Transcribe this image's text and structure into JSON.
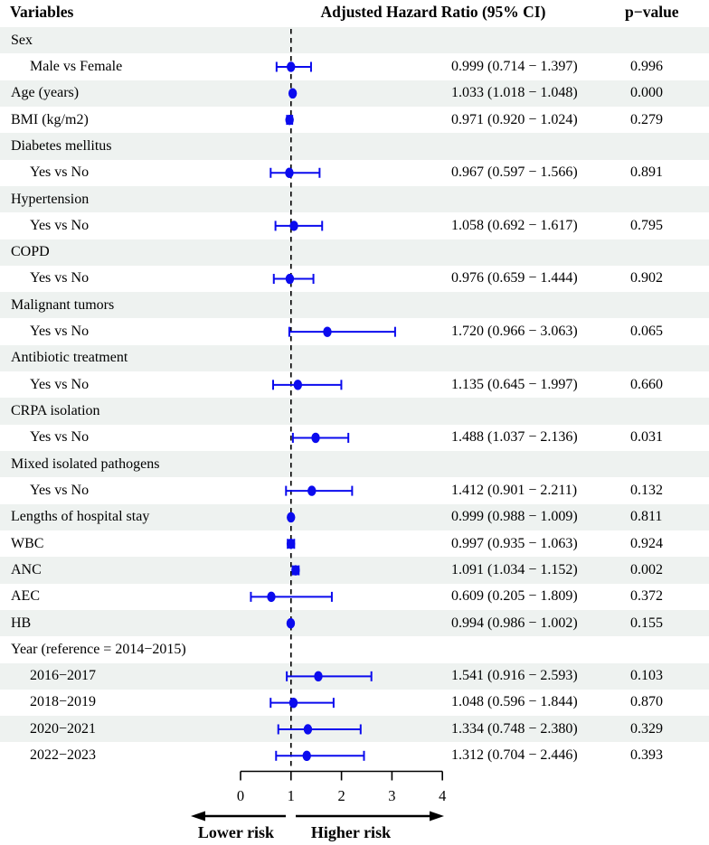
{
  "header": {
    "variables": "Variables",
    "hazard": "Adjusted Hazard Ratio (95% CI)",
    "pvalue": "p−value"
  },
  "axis": {
    "ticks": [
      0,
      1,
      2,
      3,
      4
    ],
    "ref_line": 1,
    "lower_label": "Lower risk",
    "higher_label": "Higher risk"
  },
  "colors": {
    "marker": "#0b0bee",
    "row_shade": "#eef2f0",
    "ref_line": "#000000"
  },
  "chart_data": {
    "type": "forest",
    "xlim": [
      0,
      4
    ],
    "ref_line": 1,
    "rows": [
      {
        "label": "Sex",
        "indent": false,
        "hr": null,
        "lo": null,
        "hi": null,
        "est": "",
        "p": ""
      },
      {
        "label": "Male vs Female",
        "indent": true,
        "hr": 0.999,
        "lo": 0.714,
        "hi": 1.397,
        "est": "0.999 (0.714 − 1.397)",
        "p": "0.996"
      },
      {
        "label": "Age (years)",
        "indent": false,
        "hr": 1.033,
        "lo": 1.018,
        "hi": 1.048,
        "est": "1.033 (1.018 − 1.048)",
        "p": "0.000"
      },
      {
        "label": "BMI (kg/m2)",
        "indent": false,
        "hr": 0.971,
        "lo": 0.92,
        "hi": 1.024,
        "est": "0.971 (0.920 − 1.024)",
        "p": "0.279"
      },
      {
        "label": "Diabetes mellitus",
        "indent": false,
        "hr": null,
        "lo": null,
        "hi": null,
        "est": "",
        "p": ""
      },
      {
        "label": "Yes vs No",
        "indent": true,
        "hr": 0.967,
        "lo": 0.597,
        "hi": 1.566,
        "est": "0.967 (0.597 − 1.566)",
        "p": "0.891"
      },
      {
        "label": "Hypertension",
        "indent": false,
        "hr": null,
        "lo": null,
        "hi": null,
        "est": "",
        "p": ""
      },
      {
        "label": "Yes vs No",
        "indent": true,
        "hr": 1.058,
        "lo": 0.692,
        "hi": 1.617,
        "est": "1.058 (0.692 − 1.617)",
        "p": "0.795"
      },
      {
        "label": "COPD",
        "indent": false,
        "hr": null,
        "lo": null,
        "hi": null,
        "est": "",
        "p": ""
      },
      {
        "label": "Yes vs No",
        "indent": true,
        "hr": 0.976,
        "lo": 0.659,
        "hi": 1.444,
        "est": "0.976 (0.659 − 1.444)",
        "p": "0.902"
      },
      {
        "label": "Malignant tumors",
        "indent": false,
        "hr": null,
        "lo": null,
        "hi": null,
        "est": "",
        "p": ""
      },
      {
        "label": "Yes vs No",
        "indent": true,
        "hr": 1.72,
        "lo": 0.966,
        "hi": 3.063,
        "est": "1.720 (0.966 − 3.063)",
        "p": "0.065"
      },
      {
        "label": "Antibiotic treatment",
        "indent": false,
        "hr": null,
        "lo": null,
        "hi": null,
        "est": "",
        "p": ""
      },
      {
        "label": "Yes vs No",
        "indent": true,
        "hr": 1.135,
        "lo": 0.645,
        "hi": 1.997,
        "est": "1.135 (0.645 − 1.997)",
        "p": "0.660"
      },
      {
        "label": "CRPA isolation",
        "indent": false,
        "hr": null,
        "lo": null,
        "hi": null,
        "est": "",
        "p": ""
      },
      {
        "label": "Yes vs No",
        "indent": true,
        "hr": 1.488,
        "lo": 1.037,
        "hi": 2.136,
        "est": "1.488 (1.037 − 2.136)",
        "p": "0.031"
      },
      {
        "label": "Mixed isolated pathogens",
        "indent": false,
        "hr": null,
        "lo": null,
        "hi": null,
        "est": "",
        "p": ""
      },
      {
        "label": "Yes vs No",
        "indent": true,
        "hr": 1.412,
        "lo": 0.901,
        "hi": 2.211,
        "est": "1.412 (0.901 − 2.211)",
        "p": "0.132"
      },
      {
        "label": "Lengths of hospital stay",
        "indent": false,
        "hr": 0.999,
        "lo": 0.988,
        "hi": 1.009,
        "est": "0.999 (0.988 − 1.009)",
        "p": "0.811"
      },
      {
        "label": "WBC",
        "indent": false,
        "hr": 0.997,
        "lo": 0.935,
        "hi": 1.063,
        "est": "0.997 (0.935 − 1.063)",
        "p": "0.924"
      },
      {
        "label": "ANC",
        "indent": false,
        "hr": 1.091,
        "lo": 1.034,
        "hi": 1.152,
        "est": "1.091 (1.034 − 1.152)",
        "p": "0.002"
      },
      {
        "label": "AEC",
        "indent": false,
        "hr": 0.609,
        "lo": 0.205,
        "hi": 1.809,
        "est": "0.609 (0.205 − 1.809)",
        "p": "0.372"
      },
      {
        "label": "HB",
        "indent": false,
        "hr": 0.994,
        "lo": 0.986,
        "hi": 1.002,
        "est": "0.994 (0.986 − 1.002)",
        "p": "0.155"
      },
      {
        "label": "Year (reference = 2014−2015)",
        "indent": false,
        "hr": null,
        "lo": null,
        "hi": null,
        "est": "",
        "p": ""
      },
      {
        "label": "2016−2017",
        "indent": true,
        "hr": 1.541,
        "lo": 0.916,
        "hi": 2.593,
        "est": "1.541 (0.916 − 2.593)",
        "p": "0.103"
      },
      {
        "label": "2018−2019",
        "indent": true,
        "hr": 1.048,
        "lo": 0.596,
        "hi": 1.844,
        "est": "1.048 (0.596 − 1.844)",
        "p": "0.870"
      },
      {
        "label": "2020−2021",
        "indent": true,
        "hr": 1.334,
        "lo": 0.748,
        "hi": 2.38,
        "est": "1.334 (0.748 − 2.380)",
        "p": "0.329"
      },
      {
        "label": "2022−2023",
        "indent": true,
        "hr": 1.312,
        "lo": 0.704,
        "hi": 2.446,
        "est": "1.312 (0.704 − 2.446)",
        "p": "0.393"
      }
    ]
  }
}
